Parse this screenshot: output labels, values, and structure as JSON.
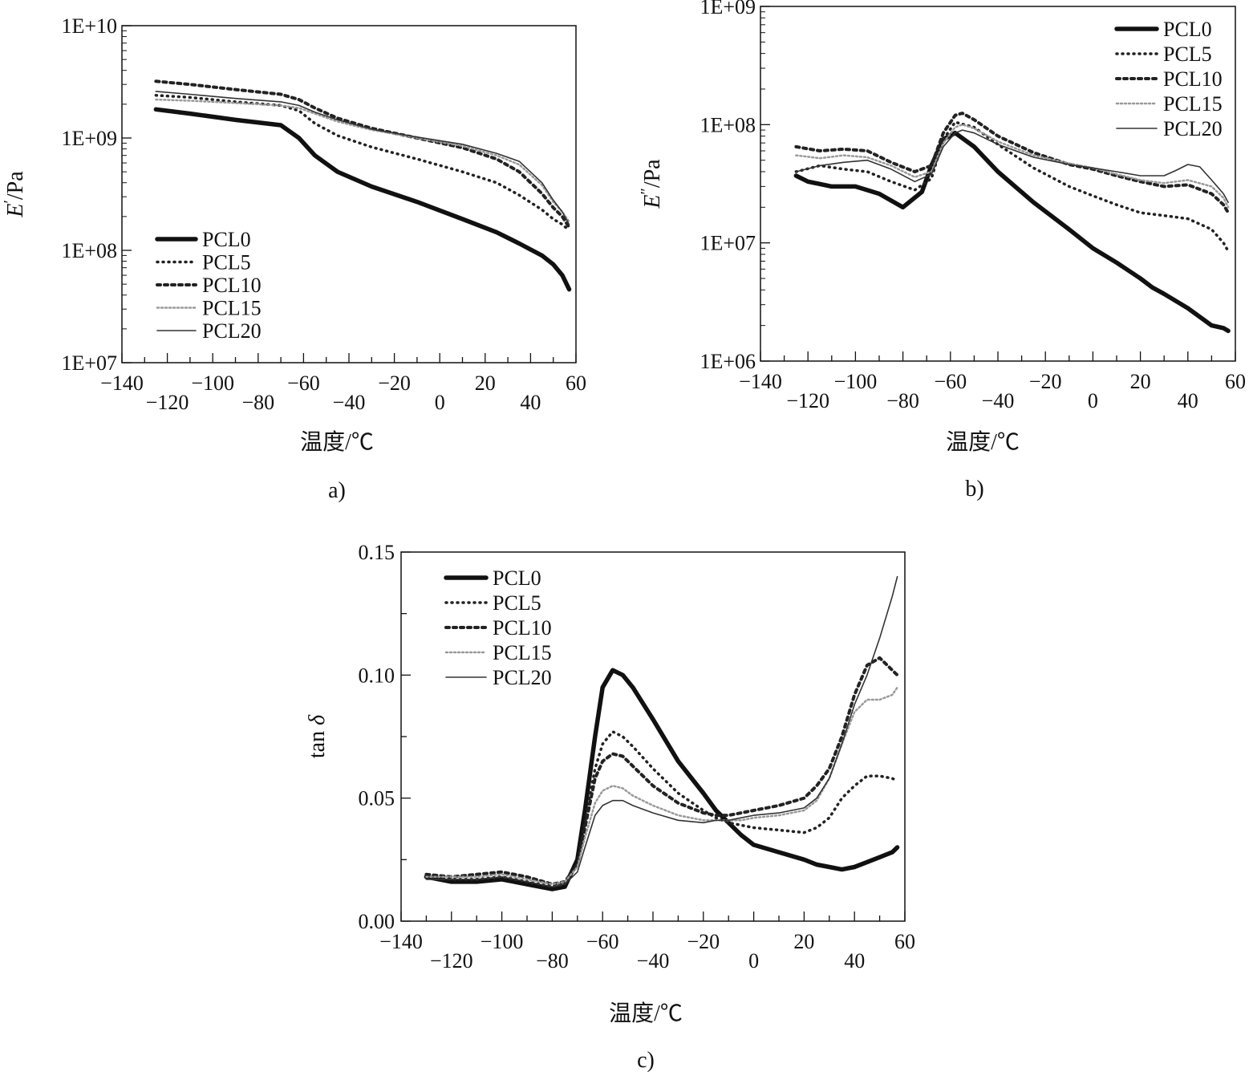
{
  "chart_data": [
    {
      "type": "line",
      "caption": "a)",
      "xlabel": "温度/℃",
      "ylabel": "E′/Pa",
      "ylabel_main": "E",
      "ylabel_sup": "′",
      "ylabel_unit": "/Pa",
      "yscale": "log",
      "xlim": [
        -140,
        60
      ],
      "ylim": [
        10000000,
        10000000000
      ],
      "x_ticks_upper": [
        "−140",
        "−100",
        "−60",
        "−20",
        "20",
        "60"
      ],
      "x_ticks_lower": [
        "−120",
        "−80",
        "−40",
        "0",
        "40"
      ],
      "y_ticks": [
        "1E+07",
        "1E+08",
        "1E+09",
        "1E+10"
      ],
      "legend": [
        "PCL0",
        "PCL5",
        "PCL10",
        "PCL15",
        "PCL20"
      ],
      "series": [
        {
          "name": "PCL0",
          "x": [
            -125,
            -110,
            -90,
            -70,
            -62,
            -55,
            -45,
            -30,
            -10,
            10,
            25,
            35,
            45,
            50,
            54,
            57
          ],
          "y": [
            1800000000.0,
            1650000000.0,
            1450000000.0,
            1300000000.0,
            1000000000.0,
            700000000.0,
            500000000.0,
            370000000.0,
            270000000.0,
            190000000.0,
            145000000.0,
            115000000.0,
            90000000.0,
            75000000.0,
            60000000.0,
            45000000.0
          ]
        },
        {
          "name": "PCL5",
          "x": [
            -125,
            -110,
            -90,
            -70,
            -62,
            -55,
            -45,
            -30,
            -10,
            10,
            25,
            35,
            45,
            50,
            54,
            57
          ],
          "y": [
            2400000000.0,
            2300000000.0,
            2100000000.0,
            1950000000.0,
            1750000000.0,
            1350000000.0,
            1050000000.0,
            830000000.0,
            650000000.0,
            500000000.0,
            400000000.0,
            310000000.0,
            230000000.0,
            190000000.0,
            170000000.0,
            150000000.0
          ]
        },
        {
          "name": "PCL10",
          "x": [
            -125,
            -110,
            -90,
            -70,
            -62,
            -55,
            -45,
            -30,
            -10,
            10,
            25,
            35,
            45,
            50,
            54,
            57
          ],
          "y": [
            3200000000.0,
            3000000000.0,
            2700000000.0,
            2450000000.0,
            2200000000.0,
            1850000000.0,
            1500000000.0,
            1220000000.0,
            1000000000.0,
            820000000.0,
            650000000.0,
            500000000.0,
            320000000.0,
            240000000.0,
            200000000.0,
            160000000.0
          ]
        },
        {
          "name": "PCL15",
          "x": [
            -125,
            -110,
            -90,
            -70,
            -62,
            -55,
            -45,
            -30,
            -10,
            10,
            25,
            35,
            45,
            50,
            54,
            57
          ],
          "y": [
            2200000000.0,
            2150000000.0,
            2050000000.0,
            1950000000.0,
            1850000000.0,
            1650000000.0,
            1400000000.0,
            1180000000.0,
            1000000000.0,
            850000000.0,
            700000000.0,
            580000000.0,
            380000000.0,
            270000000.0,
            220000000.0,
            180000000.0
          ]
        },
        {
          "name": "PCL20",
          "x": [
            -125,
            -110,
            -90,
            -70,
            -62,
            -55,
            -45,
            -30,
            -10,
            10,
            25,
            35,
            45,
            50,
            54,
            57
          ],
          "y": [
            2600000000.0,
            2450000000.0,
            2250000000.0,
            2100000000.0,
            1950000000.0,
            1700000000.0,
            1450000000.0,
            1200000000.0,
            1020000000.0,
            880000000.0,
            730000000.0,
            620000000.0,
            400000000.0,
            280000000.0,
            220000000.0,
            170000000.0
          ]
        }
      ]
    },
    {
      "type": "line",
      "caption": "b)",
      "xlabel": "温度/℃",
      "ylabel": "E″/Pa",
      "ylabel_main": "E",
      "ylabel_sup": "″",
      "ylabel_unit": "/Pa",
      "yscale": "log",
      "xlim": [
        -140,
        60
      ],
      "ylim": [
        1000000,
        1000000000
      ],
      "x_ticks_upper": [
        "−140",
        "−100",
        "−60",
        "−20",
        "20",
        "60"
      ],
      "x_ticks_lower": [
        "−120",
        "−80",
        "−40",
        "0",
        "40"
      ],
      "y_ticks": [
        "1E+06",
        "1E+07",
        "1E+08",
        "1E+09"
      ],
      "legend": [
        "PCL0",
        "PCL5",
        "PCL10",
        "PCL15",
        "PCL20"
      ],
      "series": [
        {
          "name": "PCL0",
          "x": [
            -125,
            -120,
            -110,
            -100,
            -90,
            -80,
            -72,
            -68,
            -63,
            -58,
            -50,
            -40,
            -25,
            -10,
            0,
            10,
            20,
            25,
            30,
            40,
            50,
            55,
            57
          ],
          "y": [
            37000000.0,
            33000000.0,
            30000000.0,
            30000000.0,
            26000000.0,
            20000000.0,
            27000000.0,
            45000000.0,
            75000000.0,
            85000000.0,
            65000000.0,
            40000000.0,
            22000000.0,
            13000000.0,
            9000000.0,
            6800000.0,
            5000000.0,
            4200000.0,
            3700000.0,
            2800000.0,
            2000000.0,
            1900000.0,
            1800000.0
          ]
        },
        {
          "name": "PCL5",
          "x": [
            -125,
            -115,
            -105,
            -95,
            -85,
            -75,
            -68,
            -63,
            -58,
            -50,
            -40,
            -25,
            -10,
            0,
            10,
            20,
            30,
            40,
            50,
            55,
            57
          ],
          "y": [
            40000000.0,
            45000000.0,
            42000000.0,
            40000000.0,
            33000000.0,
            28000000.0,
            35000000.0,
            75000000.0,
            105000000.0,
            95000000.0,
            68000000.0,
            43000000.0,
            30000000.0,
            25000000.0,
            21000000.0,
            18000000.0,
            17000000.0,
            16000000.0,
            13000000.0,
            10000000.0,
            8500000.0
          ]
        },
        {
          "name": "PCL10",
          "x": [
            -125,
            -115,
            -105,
            -95,
            -85,
            -75,
            -68,
            -63,
            -58,
            -55,
            -50,
            -40,
            -25,
            -10,
            0,
            10,
            20,
            30,
            40,
            50,
            55,
            57
          ],
          "y": [
            65000000.0,
            60000000.0,
            62000000.0,
            60000000.0,
            48000000.0,
            40000000.0,
            45000000.0,
            85000000.0,
            120000000.0,
            125000000.0,
            110000000.0,
            80000000.0,
            58000000.0,
            46000000.0,
            42000000.0,
            37000000.0,
            33000000.0,
            30000000.0,
            31000000.0,
            26000000.0,
            21000000.0,
            18000000.0
          ]
        },
        {
          "name": "PCL15",
          "x": [
            -125,
            -115,
            -105,
            -95,
            -85,
            -75,
            -68,
            -63,
            -58,
            -55,
            -50,
            -40,
            -25,
            -10,
            0,
            10,
            20,
            30,
            40,
            50,
            55,
            57
          ],
          "y": [
            55000000.0,
            52000000.0,
            55000000.0,
            53000000.0,
            45000000.0,
            36000000.0,
            40000000.0,
            70000000.0,
            95000000.0,
            100000000.0,
            93000000.0,
            72000000.0,
            55000000.0,
            47000000.0,
            43000000.0,
            38000000.0,
            34000000.0,
            32000000.0,
            34000000.0,
            30000000.0,
            24000000.0,
            20000000.0
          ]
        },
        {
          "name": "PCL20",
          "x": [
            -125,
            -115,
            -105,
            -95,
            -85,
            -75,
            -68,
            -63,
            -58,
            -55,
            -50,
            -40,
            -25,
            -10,
            0,
            10,
            20,
            30,
            35,
            40,
            45,
            50,
            55,
            57
          ],
          "y": [
            40000000.0,
            45000000.0,
            48000000.0,
            50000000.0,
            42000000.0,
            33000000.0,
            38000000.0,
            65000000.0,
            85000000.0,
            90000000.0,
            85000000.0,
            68000000.0,
            53000000.0,
            46000000.0,
            43000000.0,
            40000000.0,
            37000000.0,
            37000000.0,
            41000000.0,
            46000000.0,
            44000000.0,
            34000000.0,
            26000000.0,
            22000000.0
          ]
        }
      ]
    },
    {
      "type": "line",
      "caption": "c)",
      "xlabel": "温度/℃",
      "ylabel": "tan δ",
      "ylabel_main": "tan ",
      "ylabel_sup": "",
      "ylabel_unit": "δ",
      "yscale": "linear",
      "xlim": [
        -140,
        60
      ],
      "ylim": [
        0.0,
        0.15
      ],
      "x_ticks_upper": [
        "−140",
        "−100",
        "−60",
        "−20",
        "20",
        "60"
      ],
      "x_ticks_lower": [
        "−120",
        "−80",
        "−40",
        "0",
        "40"
      ],
      "y_ticks": [
        "0.00",
        "0.05",
        "0.10",
        "0.15"
      ],
      "legend": [
        "PCL0",
        "PCL5",
        "PCL10",
        "PCL15",
        "PCL20"
      ],
      "series": [
        {
          "name": "PCL0",
          "x": [
            -130,
            -120,
            -110,
            -100,
            -90,
            -80,
            -75,
            -70,
            -67,
            -63,
            -60,
            -56,
            -52,
            -48,
            -40,
            -30,
            -20,
            -15,
            -10,
            -5,
            0,
            10,
            20,
            25,
            30,
            35,
            40,
            45,
            50,
            55,
            57
          ],
          "y": [
            0.018,
            0.016,
            0.016,
            0.017,
            0.015,
            0.013,
            0.014,
            0.025,
            0.045,
            0.075,
            0.095,
            0.102,
            0.1,
            0.095,
            0.082,
            0.065,
            0.052,
            0.045,
            0.04,
            0.035,
            0.031,
            0.028,
            0.025,
            0.023,
            0.022,
            0.021,
            0.022,
            0.024,
            0.026,
            0.028,
            0.03
          ]
        },
        {
          "name": "PCL5",
          "x": [
            -130,
            -120,
            -110,
            -100,
            -90,
            -80,
            -75,
            -70,
            -67,
            -63,
            -60,
            -56,
            -52,
            -48,
            -40,
            -30,
            -20,
            -15,
            -10,
            -5,
            0,
            10,
            20,
            25,
            30,
            35,
            40,
            45,
            50,
            55,
            57
          ],
          "y": [
            0.018,
            0.017,
            0.017,
            0.018,
            0.016,
            0.014,
            0.015,
            0.023,
            0.04,
            0.062,
            0.072,
            0.077,
            0.075,
            0.071,
            0.062,
            0.052,
            0.045,
            0.042,
            0.04,
            0.039,
            0.038,
            0.037,
            0.036,
            0.038,
            0.042,
            0.05,
            0.055,
            0.059,
            0.059,
            0.058,
            0.057
          ]
        },
        {
          "name": "PCL10",
          "x": [
            -130,
            -120,
            -110,
            -100,
            -90,
            -80,
            -75,
            -70,
            -67,
            -63,
            -60,
            -56,
            -52,
            -48,
            -40,
            -30,
            -20,
            -15,
            -10,
            -5,
            0,
            10,
            20,
            25,
            30,
            35,
            40,
            45,
            50,
            55,
            57
          ],
          "y": [
            0.019,
            0.018,
            0.019,
            0.02,
            0.018,
            0.015,
            0.016,
            0.023,
            0.038,
            0.058,
            0.065,
            0.068,
            0.067,
            0.063,
            0.055,
            0.048,
            0.044,
            0.043,
            0.043,
            0.044,
            0.045,
            0.047,
            0.05,
            0.055,
            0.062,
            0.075,
            0.092,
            0.104,
            0.107,
            0.102,
            0.1
          ]
        },
        {
          "name": "PCL15",
          "x": [
            -130,
            -120,
            -110,
            -100,
            -90,
            -80,
            -75,
            -70,
            -67,
            -63,
            -60,
            -56,
            -52,
            -48,
            -40,
            -30,
            -20,
            -15,
            -10,
            -5,
            0,
            10,
            20,
            25,
            30,
            35,
            40,
            45,
            50,
            55,
            57
          ],
          "y": [
            0.018,
            0.018,
            0.018,
            0.019,
            0.017,
            0.015,
            0.016,
            0.022,
            0.034,
            0.048,
            0.053,
            0.055,
            0.054,
            0.051,
            0.047,
            0.043,
            0.041,
            0.041,
            0.041,
            0.041,
            0.042,
            0.043,
            0.045,
            0.049,
            0.058,
            0.072,
            0.085,
            0.09,
            0.09,
            0.092,
            0.095
          ]
        },
        {
          "name": "PCL20",
          "x": [
            -130,
            -120,
            -110,
            -100,
            -90,
            -80,
            -75,
            -70,
            -67,
            -63,
            -60,
            -56,
            -52,
            -48,
            -40,
            -30,
            -20,
            -15,
            -10,
            -5,
            0,
            10,
            20,
            25,
            30,
            35,
            40,
            45,
            50,
            55,
            57
          ],
          "y": [
            0.017,
            0.017,
            0.017,
            0.018,
            0.016,
            0.014,
            0.015,
            0.02,
            0.03,
            0.043,
            0.047,
            0.049,
            0.049,
            0.047,
            0.044,
            0.041,
            0.04,
            0.041,
            0.041,
            0.042,
            0.043,
            0.044,
            0.046,
            0.05,
            0.058,
            0.072,
            0.088,
            0.1,
            0.115,
            0.132,
            0.14
          ]
        }
      ]
    }
  ]
}
